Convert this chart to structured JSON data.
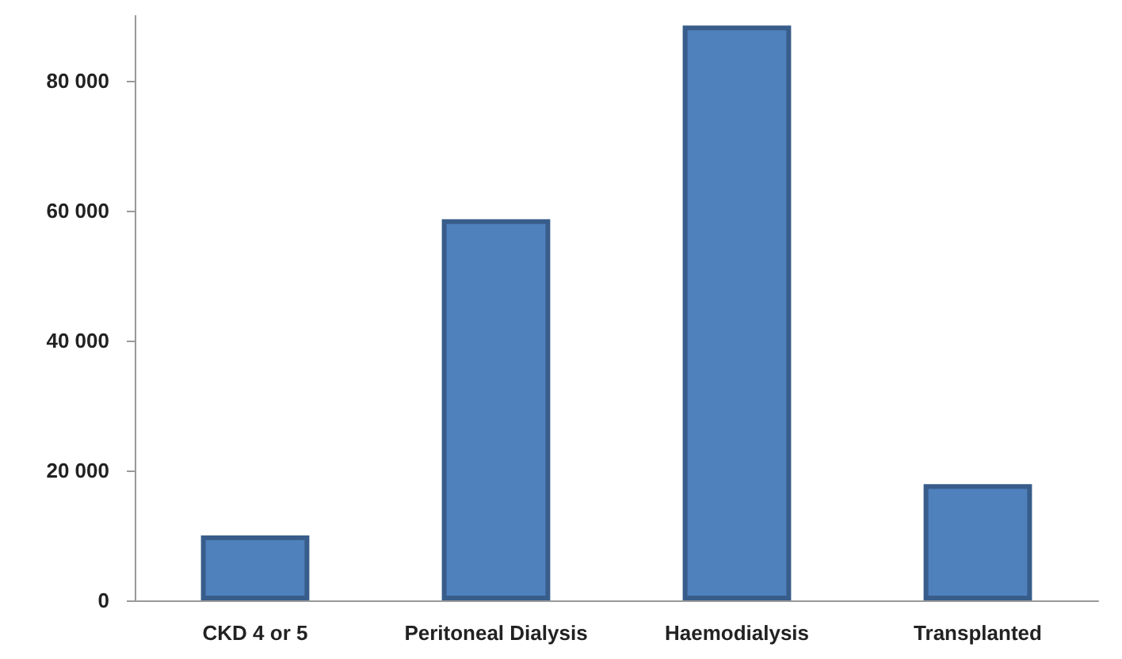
{
  "chart_data": {
    "type": "bar",
    "categories": [
      "CKD 4 or 5",
      "Peritoneal Dialysis",
      "Haemodialysis",
      "Transplanted"
    ],
    "values": [
      10000,
      58700,
      88500,
      17900
    ],
    "color": "#4f81bd",
    "ylim": [
      0,
      90000
    ],
    "yticks": [
      {
        "value": 0,
        "label": "0"
      },
      {
        "value": 20000,
        "label": "20 000"
      },
      {
        "value": 40000,
        "label": "40 000"
      },
      {
        "value": 60000,
        "label": "60 000"
      },
      {
        "value": 80000,
        "label": "80 000"
      }
    ],
    "grid": false
  }
}
